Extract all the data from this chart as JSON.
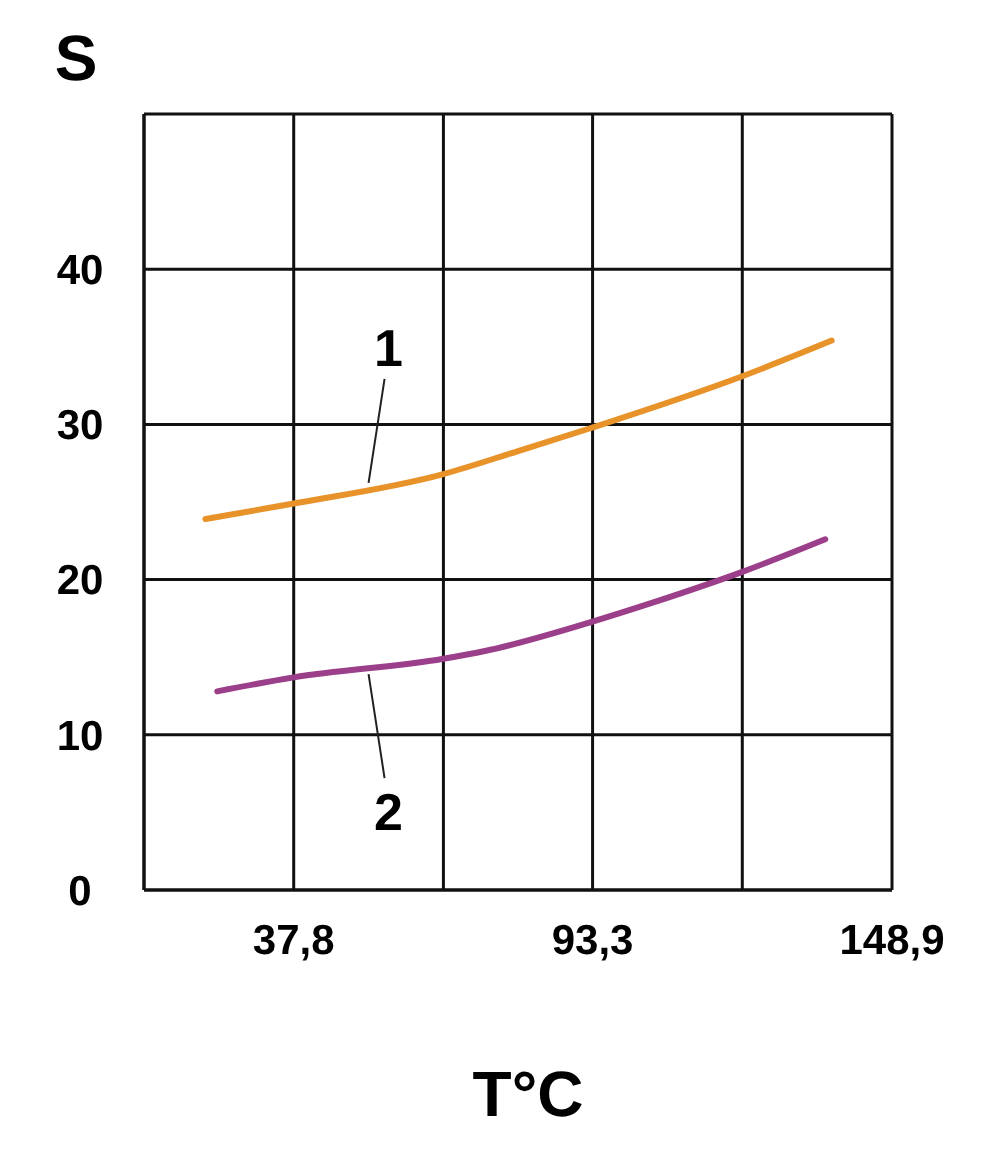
{
  "chart_data": {
    "type": "line",
    "xlabel": "T°C",
    "ylabel": "S",
    "xlim": [
      10,
      148.9
    ],
    "xticks": [
      {
        "value": 10,
        "label": null
      },
      {
        "value": 37.8,
        "label": "37,8"
      },
      {
        "value": 65.6,
        "label": null
      },
      {
        "value": 93.3,
        "label": "93,3"
      },
      {
        "value": 121.1,
        "label": null
      },
      {
        "value": 148.9,
        "label": "148,9"
      }
    ],
    "ylim": [
      0,
      50
    ],
    "yticks": [
      0,
      10,
      20,
      30,
      40,
      {
        "value": 50,
        "label": null
      }
    ],
    "grid": true,
    "marker": "none",
    "line_style": "solid",
    "series": [
      {
        "name": "1",
        "color": "#e8922a",
        "x": [
          21.4,
          37.8,
          65.6,
          79.6,
          93.3,
          121.1,
          137.7
        ],
        "values": [
          23.9,
          24.9,
          26.8,
          28.3,
          29.8,
          33.1,
          35.4
        ]
      },
      {
        "name": "2",
        "color": "#9c3f8a",
        "x": [
          23.6,
          37.8,
          65.6,
          73.3,
          93.3,
          104.3,
          121.1,
          136.5
        ],
        "values": [
          12.8,
          13.7,
          14.9,
          15.4,
          17.3,
          18.5,
          20.5,
          22.6
        ]
      }
    ]
  }
}
